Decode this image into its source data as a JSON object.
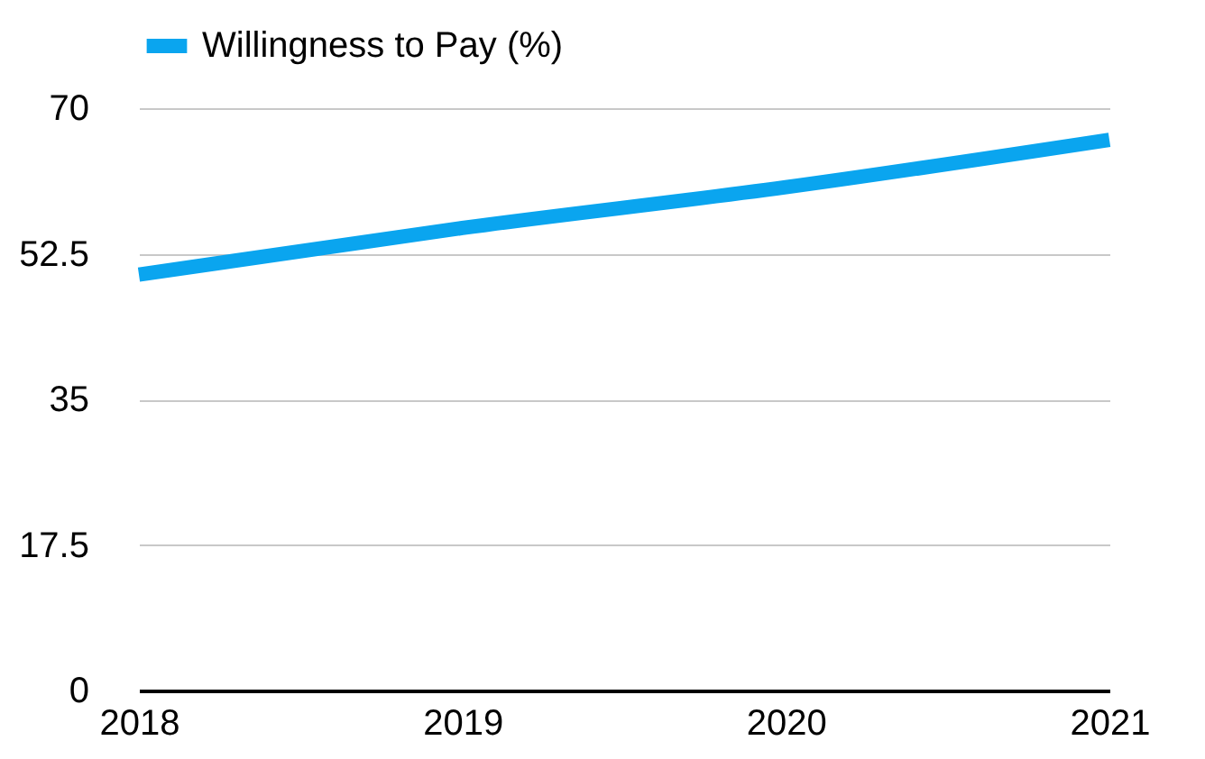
{
  "chart_data": {
    "type": "line",
    "x": [
      2018,
      2019,
      2020,
      2021
    ],
    "series": [
      {
        "name": "Willingness to Pay (%)",
        "color": "#0aa5ef",
        "values": [
          50,
          55.6,
          60.5,
          66.2
        ]
      }
    ],
    "xlim": [
      2018,
      2021
    ],
    "xticks": [
      2018,
      2019,
      2020,
      2021
    ],
    "ylim": [
      0,
      70
    ],
    "yticks": [
      0,
      17.5,
      35,
      52.5,
      70
    ],
    "grid": "y",
    "legend": "top",
    "line_style": "solid",
    "marker": "none"
  }
}
